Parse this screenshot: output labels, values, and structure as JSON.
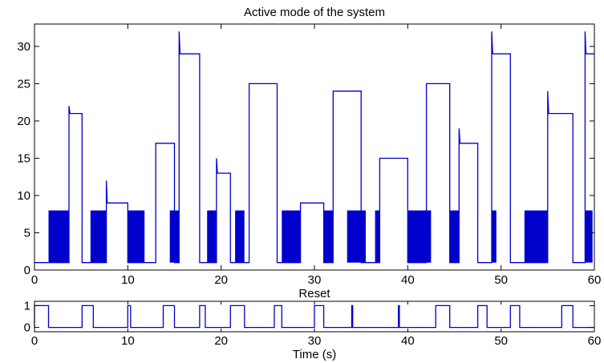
{
  "colors": {
    "line": "#0000cc",
    "axes": "#000000",
    "background": "#ffffff"
  },
  "chart_data": [
    {
      "type": "line",
      "title": "Active mode of the system",
      "xlabel": "",
      "ylabel": "",
      "xlim": [
        0,
        60
      ],
      "ylim": [
        0,
        33
      ],
      "xticks": [
        "0",
        "10",
        "20",
        "30",
        "40",
        "50",
        "60"
      ],
      "yticks": [
        "0",
        "5",
        "10",
        "15",
        "20",
        "25",
        "30"
      ],
      "grid": false,
      "legend": "none",
      "series": [
        {
          "stair_points": [
            [
              0,
              1
            ],
            [
              1.5,
              1
            ],
            [
              3.7,
              1
            ],
            [
              3.7,
              22
            ],
            [
              3.8,
              21
            ],
            [
              5.1,
              21
            ],
            [
              5.1,
              1
            ],
            [
              6,
              1
            ],
            [
              7.7,
              1
            ],
            [
              7.7,
              12
            ],
            [
              7.8,
              9
            ],
            [
              10,
              9
            ],
            [
              10,
              1
            ],
            [
              13,
              1
            ],
            [
              13,
              17
            ],
            [
              15,
              17
            ],
            [
              15,
              1
            ],
            [
              15.5,
              1
            ],
            [
              15.5,
              32
            ],
            [
              15.6,
              29
            ],
            [
              17.7,
              29
            ],
            [
              17.7,
              1
            ],
            [
              19.5,
              1
            ],
            [
              19.5,
              15
            ],
            [
              19.6,
              13
            ],
            [
              21,
              13
            ],
            [
              21,
              1
            ],
            [
              23,
              1
            ],
            [
              23,
              25
            ],
            [
              26,
              25
            ],
            [
              26,
              1
            ],
            [
              28.5,
              1
            ],
            [
              28.5,
              9
            ],
            [
              31,
              9
            ],
            [
              31,
              1
            ],
            [
              32,
              1
            ],
            [
              32,
              24
            ],
            [
              35,
              24
            ],
            [
              35,
              1
            ],
            [
              37,
              1
            ],
            [
              37,
              15
            ],
            [
              40,
              15
            ],
            [
              40,
              1
            ],
            [
              42,
              1
            ],
            [
              42,
              25
            ],
            [
              44.5,
              25
            ],
            [
              44.5,
              1
            ],
            [
              45.5,
              1
            ],
            [
              45.5,
              19
            ],
            [
              45.6,
              17
            ],
            [
              47.5,
              17
            ],
            [
              47.5,
              1
            ],
            [
              49,
              1
            ],
            [
              49,
              32
            ],
            [
              49.1,
              29
            ],
            [
              51,
              29
            ],
            [
              51,
              1
            ],
            [
              52.5,
              1
            ],
            [
              55,
              1
            ],
            [
              55,
              24
            ],
            [
              55.1,
              21
            ],
            [
              57.7,
              21
            ],
            [
              57.7,
              1
            ],
            [
              59,
              1
            ],
            [
              59,
              32
            ],
            [
              59.1,
              29
            ],
            [
              60,
              29
            ]
          ],
          "switching_intervals": [
            [
              1.5,
              3.7
            ],
            [
              6,
              7.7
            ],
            [
              10,
              11.8
            ],
            [
              14.5,
              15.5
            ],
            [
              18.5,
              19.5
            ],
            [
              21.5,
              22.5
            ],
            [
              26.5,
              28.5
            ],
            [
              31,
              32
            ],
            [
              33.5,
              35.5
            ],
            [
              36.5,
              37
            ],
            [
              40,
              42.5
            ],
            [
              44.5,
              45.5
            ],
            [
              49,
              49.5
            ],
            [
              52.5,
              55
            ],
            [
              59,
              59.8
            ]
          ],
          "switching_range": [
            1,
            8
          ]
        }
      ]
    },
    {
      "type": "line",
      "title": "Reset",
      "xlabel": "Time (s)",
      "ylabel": "",
      "xlim": [
        0,
        60
      ],
      "ylim": [
        -0.2,
        1.2
      ],
      "xticks": [
        "0",
        "10",
        "20",
        "30",
        "40",
        "50",
        "60"
      ],
      "yticks": [
        "0",
        "1"
      ],
      "grid": false,
      "legend": "none",
      "series": [
        {
          "high_intervals": [
            [
              0,
              1.5
            ],
            [
              5.1,
              6.3
            ],
            [
              10,
              10.3
            ],
            [
              13.8,
              15
            ],
            [
              17.7,
              18.3
            ],
            [
              21,
              22.5
            ],
            [
              25.7,
              26.5
            ],
            [
              30,
              31
            ],
            [
              34,
              34.1
            ],
            [
              39,
              39.1
            ],
            [
              43,
              44.5
            ],
            [
              47.5,
              48.5
            ],
            [
              51,
              52
            ],
            [
              56.5,
              57.7
            ]
          ],
          "spikes": [
            34,
            39
          ]
        }
      ]
    }
  ]
}
